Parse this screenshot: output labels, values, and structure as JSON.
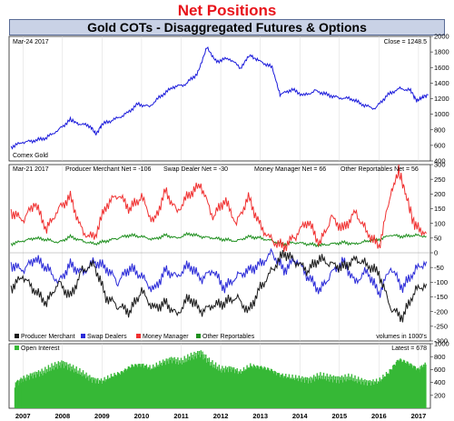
{
  "header": {
    "title": "Net Positions",
    "subtitle": "Gold COTs - Disaggregated Futures & Options"
  },
  "chart_data": [
    {
      "type": "line",
      "panel": "price",
      "date_label": "Mar-24  2017",
      "readout": "Close = 1248.5",
      "footer_label": "Comex Gold",
      "ylim": [
        400,
        2000
      ],
      "yticks": [
        400,
        600,
        800,
        1000,
        1200,
        1400,
        1600,
        1800,
        2000
      ],
      "color": "#1a1adb",
      "series": [
        {
          "x": [
            2006.7,
            2007.0,
            2007.3,
            2007.6,
            2007.9,
            2008.2,
            2008.4,
            2008.7,
            2008.85,
            2009.0,
            2009.3,
            2009.6,
            2009.9,
            2010.2,
            2010.5,
            2010.8,
            2011.1,
            2011.4,
            2011.65,
            2011.9,
            2012.2,
            2012.5,
            2012.75,
            2013.0,
            2013.3,
            2013.5,
            2013.8,
            2014.1,
            2014.4,
            2014.7,
            2015.0,
            2015.3,
            2015.6,
            2015.9,
            2016.2,
            2016.5,
            2016.8,
            2016.95,
            2017.1,
            2017.25
          ],
          "values": [
            580,
            640,
            660,
            700,
            800,
            930,
            880,
            850,
            740,
            870,
            930,
            1000,
            1130,
            1100,
            1240,
            1350,
            1380,
            1520,
            1850,
            1680,
            1720,
            1600,
            1760,
            1680,
            1600,
            1250,
            1320,
            1240,
            1300,
            1250,
            1210,
            1200,
            1120,
            1070,
            1240,
            1330,
            1310,
            1170,
            1220,
            1248
          ]
        }
      ]
    },
    {
      "type": "line",
      "panel": "net-positions",
      "date_label": "Mar-21  2017",
      "readouts": [
        "Producer Merchant Net = -106",
        "Swap Dealer Net = -30",
        "Money Manager Net = 66",
        "Other Reportables Net = 56"
      ],
      "units_note": "volumes in 1000's",
      "ylim": [
        -300,
        300
      ],
      "yticks": [
        -300,
        -250,
        -200,
        -150,
        -100,
        -50,
        0,
        50,
        100,
        150,
        200,
        250,
        300
      ],
      "series": [
        {
          "name": "Producer Merchant",
          "color": "#1a1a1a",
          "x": [
            2006.7,
            2007.0,
            2007.3,
            2007.6,
            2007.9,
            2008.2,
            2008.5,
            2008.8,
            2009.1,
            2009.4,
            2009.7,
            2010.0,
            2010.3,
            2010.6,
            2010.9,
            2011.2,
            2011.5,
            2011.8,
            2012.1,
            2012.4,
            2012.7,
            2013.0,
            2013.3,
            2013.6,
            2013.9,
            2014.2,
            2014.5,
            2014.8,
            2015.1,
            2015.4,
            2015.7,
            2016.0,
            2016.3,
            2016.6,
            2016.9,
            2017.2
          ],
          "values": [
            -120,
            -80,
            -130,
            -170,
            -100,
            -150,
            -60,
            -40,
            -150,
            -180,
            -200,
            -130,
            -190,
            -170,
            -210,
            -150,
            -200,
            -180,
            -170,
            -150,
            -200,
            -120,
            -60,
            0,
            -30,
            -60,
            -20,
            -40,
            -50,
            -20,
            -40,
            -70,
            -190,
            -220,
            -130,
            -106
          ]
        },
        {
          "name": "Swap Dealers",
          "color": "#2b2bd8",
          "x": [
            2006.7,
            2007.0,
            2007.3,
            2007.6,
            2007.9,
            2008.2,
            2008.5,
            2008.8,
            2009.1,
            2009.4,
            2009.7,
            2010.0,
            2010.3,
            2010.6,
            2010.9,
            2011.2,
            2011.5,
            2011.8,
            2012.1,
            2012.4,
            2012.7,
            2013.0,
            2013.3,
            2013.6,
            2013.9,
            2014.2,
            2014.5,
            2014.8,
            2015.1,
            2015.4,
            2015.7,
            2016.0,
            2016.3,
            2016.6,
            2016.9,
            2017.2
          ],
          "values": [
            -40,
            -60,
            -20,
            -50,
            -100,
            -40,
            -70,
            -30,
            -50,
            -100,
            -50,
            -80,
            -130,
            -60,
            -80,
            -40,
            -90,
            -60,
            -120,
            -80,
            -60,
            -40,
            0,
            -60,
            -20,
            -80,
            -130,
            -70,
            -30,
            -100,
            -60,
            -140,
            -50,
            -120,
            -60,
            -30
          ]
        },
        {
          "name": "Money Manager",
          "color": "#f03030",
          "x": [
            2006.7,
            2007.0,
            2007.3,
            2007.6,
            2007.9,
            2008.2,
            2008.5,
            2008.8,
            2009.1,
            2009.4,
            2009.7,
            2010.0,
            2010.3,
            2010.6,
            2010.9,
            2011.2,
            2011.5,
            2011.8,
            2012.1,
            2012.4,
            2012.7,
            2013.0,
            2013.3,
            2013.6,
            2013.9,
            2014.2,
            2014.5,
            2014.8,
            2015.1,
            2015.4,
            2015.7,
            2016.0,
            2016.3,
            2016.5,
            2016.7,
            2016.9,
            2017.2
          ],
          "values": [
            140,
            110,
            170,
            80,
            150,
            190,
            70,
            50,
            160,
            200,
            150,
            190,
            100,
            210,
            140,
            200,
            230,
            120,
            180,
            100,
            190,
            90,
            40,
            20,
            60,
            110,
            30,
            120,
            80,
            140,
            70,
            20,
            200,
            280,
            190,
            90,
            66
          ]
        },
        {
          "name": "Other Reportables",
          "color": "#1e8f1e",
          "x": [
            2006.7,
            2007.0,
            2007.3,
            2007.6,
            2007.9,
            2008.2,
            2008.5,
            2008.8,
            2009.1,
            2009.4,
            2009.7,
            2010.0,
            2010.3,
            2010.6,
            2010.9,
            2011.2,
            2011.5,
            2011.8,
            2012.1,
            2012.4,
            2012.7,
            2013.0,
            2013.3,
            2013.6,
            2013.9,
            2014.2,
            2014.5,
            2014.8,
            2015.1,
            2015.4,
            2015.7,
            2016.0,
            2016.3,
            2016.6,
            2016.9,
            2017.2
          ],
          "values": [
            30,
            40,
            50,
            45,
            35,
            55,
            40,
            30,
            40,
            50,
            60,
            55,
            45,
            60,
            50,
            65,
            55,
            50,
            45,
            40,
            55,
            50,
            40,
            30,
            35,
            30,
            25,
            30,
            35,
            30,
            40,
            45,
            60,
            55,
            60,
            56
          ]
        }
      ]
    },
    {
      "type": "bar",
      "panel": "open-interest",
      "legend_label": "Open Interest",
      "readout": "Latest = 678",
      "ylim": [
        0,
        1000
      ],
      "yticks": [
        200,
        400,
        600,
        800,
        1000
      ],
      "color": "#36b836",
      "x": [
        2006.8,
        2007.0,
        2007.25,
        2007.5,
        2007.75,
        2008.0,
        2008.25,
        2008.5,
        2008.75,
        2009.0,
        2009.25,
        2009.5,
        2009.75,
        2010.0,
        2010.25,
        2010.5,
        2010.75,
        2011.0,
        2011.25,
        2011.5,
        2011.75,
        2012.0,
        2012.25,
        2012.5,
        2012.75,
        2013.0,
        2013.25,
        2013.5,
        2013.75,
        2014.0,
        2014.25,
        2014.5,
        2014.75,
        2015.0,
        2015.25,
        2015.5,
        2015.75,
        2016.0,
        2016.25,
        2016.5,
        2016.75,
        2017.0,
        2017.2
      ],
      "values": [
        380,
        450,
        520,
        560,
        640,
        700,
        620,
        540,
        450,
        420,
        500,
        560,
        660,
        680,
        620,
        700,
        760,
        720,
        800,
        860,
        700,
        600,
        620,
        560,
        660,
        640,
        600,
        520,
        480,
        460,
        440,
        500,
        470,
        450,
        480,
        430,
        400,
        420,
        560,
        760,
        700,
        600,
        678
      ]
    }
  ],
  "x_axis": {
    "year_labels": [
      "2007",
      "2008",
      "2009",
      "2010",
      "2011",
      "2012",
      "2013",
      "2014",
      "2015",
      "2016",
      "2017"
    ]
  }
}
